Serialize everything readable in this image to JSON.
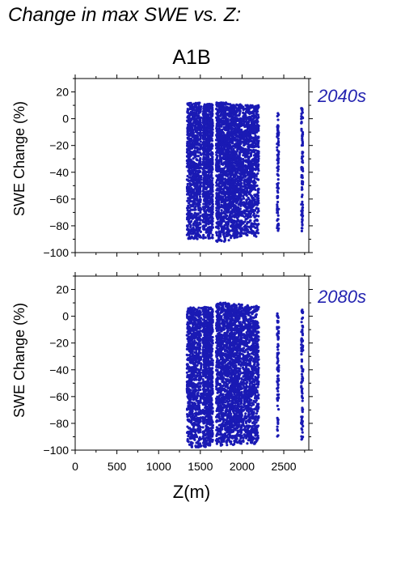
{
  "figure": {
    "title": "Change in max SWE vs. Z:",
    "scenario": "A1B",
    "point_color": "#1a1ab4",
    "label_color": "#2323b0"
  },
  "chart_data": [
    {
      "type": "scatter",
      "period_label": "2040s",
      "xlabel": "",
      "ylabel": "SWE Change (%)",
      "xlim": [
        0,
        2800
      ],
      "ylim": [
        -100,
        30
      ],
      "yticks": [
        20,
        0,
        -20,
        -40,
        -60,
        -80,
        -100
      ],
      "xticks": [],
      "elevation_bands": [
        {
          "x": [
            1340,
            1510
          ],
          "y": [
            -90,
            12
          ]
        },
        {
          "x": [
            1530,
            1650
          ],
          "y": [
            -90,
            11
          ]
        },
        {
          "x": [
            1690,
            1850
          ],
          "y": [
            -92,
            12
          ]
        },
        {
          "x": [
            1850,
            2000
          ],
          "y": [
            -90,
            11
          ]
        },
        {
          "x": [
            2010,
            2200
          ],
          "y": [
            -88,
            10
          ]
        },
        {
          "x": [
            2420,
            2440
          ],
          "y": [
            -84,
            6
          ]
        },
        {
          "x": [
            2710,
            2730
          ],
          "y": [
            -84,
            9
          ]
        }
      ]
    },
    {
      "type": "scatter",
      "period_label": "2080s",
      "xlabel": "Z(m)",
      "ylabel": "SWE Change (%)",
      "xlim": [
        0,
        2800
      ],
      "ylim": [
        -100,
        30
      ],
      "yticks": [
        20,
        0,
        -20,
        -40,
        -60,
        -80,
        -100
      ],
      "xticks": [
        0,
        500,
        1000,
        1500,
        2000,
        2500
      ],
      "elevation_bands": [
        {
          "x": [
            1340,
            1510
          ],
          "y": [
            -98,
            7
          ]
        },
        {
          "x": [
            1530,
            1650
          ],
          "y": [
            -98,
            7
          ]
        },
        {
          "x": [
            1690,
            1850
          ],
          "y": [
            -97,
            10
          ]
        },
        {
          "x": [
            1850,
            2000
          ],
          "y": [
            -96,
            9
          ]
        },
        {
          "x": [
            2010,
            2200
          ],
          "y": [
            -96,
            8
          ]
        },
        {
          "x": [
            2420,
            2440
          ],
          "y": [
            -95,
            2
          ]
        },
        {
          "x": [
            2710,
            2730
          ],
          "y": [
            -93,
            5
          ]
        }
      ]
    }
  ]
}
